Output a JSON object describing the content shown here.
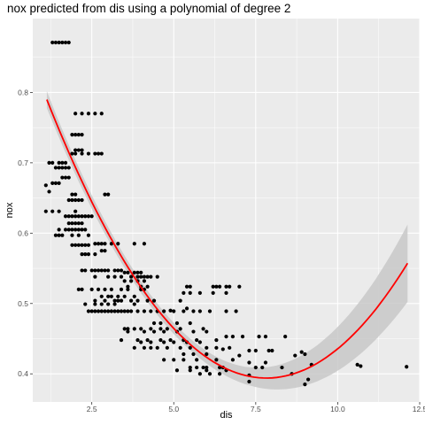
{
  "chart_data": {
    "type": "scatter",
    "title": "nox predicted from dis using a polynomial of degree 2",
    "xlabel": "dis",
    "ylabel": "nox",
    "xlim": [
      0.7,
      12.5
    ],
    "ylim": [
      0.36,
      0.905
    ],
    "xticks": [
      2.5,
      5.0,
      7.5,
      10.0,
      12.5
    ],
    "xtick_labels": [
      "2.5",
      "5.0",
      "7.5",
      "10.0",
      "12.5"
    ],
    "yticks": [
      0.4,
      0.5,
      0.6,
      0.7,
      0.8
    ],
    "ytick_labels": [
      "0.4",
      "0.5",
      "0.6",
      "0.7",
      "0.8"
    ],
    "grid": true,
    "background_color": "#ebebeb",
    "grid_color": "#ffffff",
    "point_color": "#000000",
    "fit_color": "#ff0000",
    "band_color": "#c8c8c8",
    "fit": {
      "degree": 2,
      "x_range": [
        1.13,
        12.13
      ],
      "coefficients": [
        0.9346,
        -0.1381,
        0.00882
      ],
      "band_halfwidth_center": 0.008,
      "band_halfwidth_left_end": 0.012,
      "band_halfwidth_right_end": 0.055,
      "band_center_x": 5.0
    },
    "points": [
      [
        1.3,
        0.871
      ],
      [
        1.4,
        0.871
      ],
      [
        1.5,
        0.871
      ],
      [
        1.6,
        0.871
      ],
      [
        1.7,
        0.871
      ],
      [
        1.8,
        0.871
      ],
      [
        2.0,
        0.77
      ],
      [
        2.2,
        0.77
      ],
      [
        2.4,
        0.77
      ],
      [
        2.6,
        0.77
      ],
      [
        2.8,
        0.77
      ],
      [
        1.9,
        0.74
      ],
      [
        2.0,
        0.74
      ],
      [
        2.1,
        0.74
      ],
      [
        2.2,
        0.74
      ],
      [
        2.1,
        0.718
      ],
      [
        2.2,
        0.718
      ],
      [
        2.0,
        0.718
      ],
      [
        1.9,
        0.713
      ],
      [
        2.0,
        0.713
      ],
      [
        2.2,
        0.713
      ],
      [
        2.4,
        0.713
      ],
      [
        2.6,
        0.713
      ],
      [
        2.7,
        0.713
      ],
      [
        2.8,
        0.713
      ],
      [
        1.2,
        0.7
      ],
      [
        1.3,
        0.7
      ],
      [
        1.5,
        0.7
      ],
      [
        1.6,
        0.7
      ],
      [
        1.7,
        0.7
      ],
      [
        1.4,
        0.693
      ],
      [
        1.5,
        0.693
      ],
      [
        1.6,
        0.693
      ],
      [
        1.7,
        0.693
      ],
      [
        1.8,
        0.693
      ],
      [
        1.6,
        0.679
      ],
      [
        1.7,
        0.679
      ],
      [
        1.8,
        0.679
      ],
      [
        1.1,
        0.668
      ],
      [
        1.3,
        0.671
      ],
      [
        1.4,
        0.671
      ],
      [
        1.5,
        0.671
      ],
      [
        1.2,
        0.659
      ],
      [
        1.9,
        0.655
      ],
      [
        2.0,
        0.655
      ],
      [
        2.9,
        0.655
      ],
      [
        3.0,
        0.655
      ],
      [
        1.8,
        0.647
      ],
      [
        1.9,
        0.647
      ],
      [
        2.0,
        0.647
      ],
      [
        2.1,
        0.647
      ],
      [
        2.2,
        0.647
      ],
      [
        1.1,
        0.631
      ],
      [
        1.3,
        0.631
      ],
      [
        1.5,
        0.631
      ],
      [
        2.0,
        0.631
      ],
      [
        1.7,
        0.624
      ],
      [
        1.8,
        0.624
      ],
      [
        1.9,
        0.624
      ],
      [
        2.0,
        0.624
      ],
      [
        2.1,
        0.624
      ],
      [
        2.2,
        0.624
      ],
      [
        2.3,
        0.624
      ],
      [
        2.4,
        0.624
      ],
      [
        2.5,
        0.624
      ],
      [
        1.8,
        0.614
      ],
      [
        1.9,
        0.614
      ],
      [
        2.0,
        0.614
      ],
      [
        2.1,
        0.614
      ],
      [
        2.2,
        0.614
      ],
      [
        1.5,
        0.605
      ],
      [
        1.7,
        0.605
      ],
      [
        1.8,
        0.605
      ],
      [
        1.9,
        0.605
      ],
      [
        2.0,
        0.605
      ],
      [
        2.1,
        0.605
      ],
      [
        2.2,
        0.605
      ],
      [
        2.3,
        0.605
      ],
      [
        1.4,
        0.597
      ],
      [
        1.5,
        0.597
      ],
      [
        1.6,
        0.597
      ],
      [
        1.9,
        0.597
      ],
      [
        2.1,
        0.597
      ],
      [
        2.4,
        0.597
      ],
      [
        2.6,
        0.585
      ],
      [
        2.7,
        0.585
      ],
      [
        2.8,
        0.585
      ],
      [
        2.9,
        0.585
      ],
      [
        3.1,
        0.585
      ],
      [
        3.3,
        0.585
      ],
      [
        3.8,
        0.585
      ],
      [
        4.1,
        0.585
      ],
      [
        1.9,
        0.583
      ],
      [
        2.0,
        0.583
      ],
      [
        2.1,
        0.583
      ],
      [
        2.2,
        0.583
      ],
      [
        2.3,
        0.583
      ],
      [
        2.4,
        0.583
      ],
      [
        2.8,
        0.575
      ],
      [
        2.9,
        0.575
      ],
      [
        2.2,
        0.57
      ],
      [
        2.3,
        0.57
      ],
      [
        2.4,
        0.57
      ],
      [
        2.6,
        0.57
      ],
      [
        2.2,
        0.547
      ],
      [
        2.3,
        0.547
      ],
      [
        2.5,
        0.547
      ],
      [
        2.6,
        0.547
      ],
      [
        2.7,
        0.547
      ],
      [
        2.8,
        0.547
      ],
      [
        2.9,
        0.547
      ],
      [
        3.0,
        0.547
      ],
      [
        3.2,
        0.547
      ],
      [
        3.3,
        0.547
      ],
      [
        3.4,
        0.547
      ],
      [
        3.5,
        0.544
      ],
      [
        3.6,
        0.544
      ],
      [
        3.8,
        0.544
      ],
      [
        3.9,
        0.544
      ],
      [
        4.0,
        0.544
      ],
      [
        2.6,
        0.538
      ],
      [
        3.0,
        0.538
      ],
      [
        3.2,
        0.538
      ],
      [
        3.4,
        0.538
      ],
      [
        3.7,
        0.538
      ],
      [
        3.9,
        0.538
      ],
      [
        4.0,
        0.538
      ],
      [
        4.1,
        0.538
      ],
      [
        4.2,
        0.538
      ],
      [
        4.3,
        0.538
      ],
      [
        4.5,
        0.538
      ],
      [
        3.5,
        0.532
      ],
      [
        3.7,
        0.532
      ],
      [
        3.9,
        0.532
      ],
      [
        4.1,
        0.532
      ],
      [
        3.6,
        0.524
      ],
      [
        4.0,
        0.524
      ],
      [
        4.2,
        0.524
      ],
      [
        5.4,
        0.524
      ],
      [
        5.5,
        0.524
      ],
      [
        6.2,
        0.524
      ],
      [
        6.3,
        0.524
      ],
      [
        6.4,
        0.524
      ],
      [
        6.6,
        0.524
      ],
      [
        6.7,
        0.524
      ],
      [
        7.0,
        0.524
      ],
      [
        2.1,
        0.52
      ],
      [
        2.2,
        0.52
      ],
      [
        2.5,
        0.52
      ],
      [
        2.7,
        0.52
      ],
      [
        2.9,
        0.52
      ],
      [
        3.1,
        0.52
      ],
      [
        3.4,
        0.52
      ],
      [
        3.6,
        0.52
      ],
      [
        4.0,
        0.52
      ],
      [
        4.1,
        0.52
      ],
      [
        5.3,
        0.515
      ],
      [
        5.5,
        0.515
      ],
      [
        5.8,
        0.515
      ],
      [
        6.2,
        0.515
      ],
      [
        6.6,
        0.515
      ],
      [
        2.8,
        0.51
      ],
      [
        3.0,
        0.51
      ],
      [
        3.1,
        0.51
      ],
      [
        3.3,
        0.51
      ],
      [
        3.5,
        0.51
      ],
      [
        3.8,
        0.51
      ],
      [
        2.6,
        0.504
      ],
      [
        2.9,
        0.504
      ],
      [
        3.2,
        0.504
      ],
      [
        3.3,
        0.504
      ],
      [
        3.4,
        0.504
      ],
      [
        3.7,
        0.504
      ],
      [
        3.9,
        0.504
      ],
      [
        4.2,
        0.504
      ],
      [
        4.4,
        0.504
      ],
      [
        5.2,
        0.504
      ],
      [
        2.3,
        0.499
      ],
      [
        2.6,
        0.499
      ],
      [
        2.8,
        0.499
      ],
      [
        3.0,
        0.499
      ],
      [
        3.2,
        0.499
      ],
      [
        3.8,
        0.499
      ],
      [
        5.4,
        0.493
      ],
      [
        4.9,
        0.49
      ],
      [
        2.4,
        0.489
      ],
      [
        2.5,
        0.489
      ],
      [
        2.6,
        0.489
      ],
      [
        2.7,
        0.489
      ],
      [
        2.8,
        0.489
      ],
      [
        2.9,
        0.489
      ],
      [
        3.0,
        0.489
      ],
      [
        3.1,
        0.489
      ],
      [
        3.2,
        0.489
      ],
      [
        3.3,
        0.489
      ],
      [
        3.4,
        0.489
      ],
      [
        3.5,
        0.489
      ],
      [
        3.6,
        0.489
      ],
      [
        3.7,
        0.489
      ],
      [
        3.9,
        0.489
      ],
      [
        4.1,
        0.489
      ],
      [
        4.3,
        0.489
      ],
      [
        4.5,
        0.489
      ],
      [
        4.7,
        0.489
      ],
      [
        5.0,
        0.489
      ],
      [
        5.3,
        0.489
      ],
      [
        5.6,
        0.489
      ],
      [
        5.8,
        0.489
      ],
      [
        6.1,
        0.489
      ],
      [
        6.6,
        0.489
      ],
      [
        6.9,
        0.489
      ],
      [
        4.4,
        0.472
      ],
      [
        4.6,
        0.472
      ],
      [
        5.1,
        0.472
      ],
      [
        5.5,
        0.472
      ],
      [
        3.5,
        0.464
      ],
      [
        3.6,
        0.464
      ],
      [
        3.8,
        0.464
      ],
      [
        4.0,
        0.464
      ],
      [
        4.3,
        0.464
      ],
      [
        4.6,
        0.464
      ],
      [
        4.8,
        0.464
      ],
      [
        5.2,
        0.464
      ],
      [
        5.9,
        0.464
      ],
      [
        3.6,
        0.46
      ],
      [
        4.1,
        0.46
      ],
      [
        4.4,
        0.46
      ],
      [
        4.7,
        0.46
      ],
      [
        5.1,
        0.46
      ],
      [
        5.6,
        0.46
      ],
      [
        6.0,
        0.46
      ],
      [
        6.6,
        0.453
      ],
      [
        6.8,
        0.453
      ],
      [
        7.1,
        0.453
      ],
      [
        7.6,
        0.453
      ],
      [
        7.8,
        0.453
      ],
      [
        8.4,
        0.453
      ],
      [
        3.4,
        0.448
      ],
      [
        3.9,
        0.448
      ],
      [
        4.2,
        0.448
      ],
      [
        4.6,
        0.448
      ],
      [
        4.9,
        0.448
      ],
      [
        5.3,
        0.448
      ],
      [
        5.7,
        0.448
      ],
      [
        6.3,
        0.448
      ],
      [
        4.0,
        0.445
      ],
      [
        4.3,
        0.445
      ],
      [
        4.7,
        0.445
      ],
      [
        5.0,
        0.445
      ],
      [
        5.4,
        0.445
      ],
      [
        5.8,
        0.445
      ],
      [
        3.8,
        0.437
      ],
      [
        4.1,
        0.437
      ],
      [
        4.3,
        0.437
      ],
      [
        4.5,
        0.437
      ],
      [
        4.8,
        0.437
      ],
      [
        5.2,
        0.437
      ],
      [
        5.5,
        0.437
      ],
      [
        6.0,
        0.437
      ],
      [
        6.3,
        0.437
      ],
      [
        6.7,
        0.437
      ],
      [
        6.5,
        0.435
      ],
      [
        7.3,
        0.433
      ],
      [
        7.5,
        0.433
      ],
      [
        7.9,
        0.433
      ],
      [
        8.0,
        0.433
      ],
      [
        8.9,
        0.431
      ],
      [
        9.0,
        0.428
      ],
      [
        8.7,
        0.426
      ],
      [
        7.0,
        0.426
      ],
      [
        5.3,
        0.428
      ],
      [
        5.6,
        0.428
      ],
      [
        6.0,
        0.428
      ],
      [
        4.7,
        0.42
      ],
      [
        5.0,
        0.42
      ],
      [
        5.3,
        0.42
      ],
      [
        5.7,
        0.42
      ],
      [
        6.3,
        0.42
      ],
      [
        6.8,
        0.42
      ],
      [
        7.3,
        0.416
      ],
      [
        7.8,
        0.416
      ],
      [
        9.2,
        0.413
      ],
      [
        10.6,
        0.413
      ],
      [
        10.7,
        0.411
      ],
      [
        5.5,
        0.409
      ],
      [
        5.7,
        0.409
      ],
      [
        5.9,
        0.409
      ],
      [
        6.0,
        0.409
      ],
      [
        6.4,
        0.409
      ],
      [
        6.5,
        0.409
      ],
      [
        7.5,
        0.409
      ],
      [
        7.7,
        0.409
      ],
      [
        8.3,
        0.409
      ],
      [
        12.1,
        0.41
      ],
      [
        5.1,
        0.405
      ],
      [
        5.5,
        0.405
      ],
      [
        6.0,
        0.405
      ],
      [
        6.6,
        0.405
      ],
      [
        5.8,
        0.4
      ],
      [
        6.1,
        0.4
      ],
      [
        6.4,
        0.4
      ],
      [
        8.6,
        0.4
      ],
      [
        7.3,
        0.398
      ],
      [
        9.1,
        0.392
      ],
      [
        7.3,
        0.389
      ],
      [
        9.0,
        0.385
      ]
    ]
  }
}
